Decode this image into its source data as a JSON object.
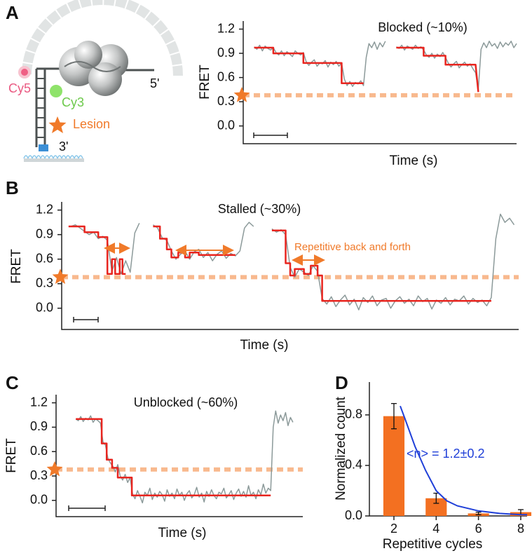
{
  "diagram": {
    "labels": {
      "cy5": "Cy5",
      "cy3": "Cy3",
      "lesion": "Lesion",
      "five_prime": "5'",
      "three_prime": "3'"
    }
  },
  "chart_data": [
    {
      "type": "line",
      "panel": "A",
      "title": "Blocked (~10%)",
      "xlabel": "Time (s)",
      "ylabel": "FRET",
      "xlim": [
        0,
        100
      ],
      "ylim": [
        -0.22,
        1.3
      ],
      "yticks": [
        {
          "value": 0,
          "label": "0.0"
        },
        0.3,
        0.6,
        0.9,
        1.2
      ],
      "lesion_level": 0.38,
      "lesion_color": "#f8b98e",
      "star_color": "#f07a2a",
      "series": [
        {
          "color": "#8c9a9a",
          "x": [
            4,
            5,
            6,
            7,
            8,
            9,
            10,
            11,
            12,
            13,
            14,
            15,
            16,
            17,
            18,
            19,
            20,
            21,
            22,
            23,
            24,
            25,
            26,
            27,
            28,
            29,
            30,
            31,
            32,
            33,
            34,
            35,
            36,
            37,
            38,
            39,
            40,
            41,
            42,
            43,
            44,
            45,
            46,
            47,
            48,
            49,
            50,
            51,
            52
          ],
          "values": [
            0.98,
            0.95,
            1.0,
            0.93,
            0.99,
            0.96,
            0.94,
            0.97,
            0.91,
            0.88,
            0.93,
            0.87,
            0.92,
            0.89,
            0.86,
            0.93,
            0.9,
            0.88,
            0.91,
            0.8,
            0.75,
            0.79,
            0.82,
            0.74,
            0.78,
            0.77,
            0.81,
            0.73,
            0.79,
            0.76,
            0.8,
            0.74,
            0.78,
            0.58,
            0.5,
            0.55,
            0.49,
            0.54,
            0.52,
            0.56,
            0.5,
            0.85,
            1.02,
            0.97,
            1.04,
            0.95,
            1.03,
            0.98,
            1.05
          ]
        },
        {
          "color": "#8c9a9a",
          "x": [
            56,
            57,
            58,
            59,
            60,
            61,
            62,
            63,
            64,
            65,
            66,
            67,
            68,
            69,
            70,
            71,
            72,
            73,
            74,
            75,
            76,
            77,
            78,
            79,
            80,
            81,
            82,
            83,
            84,
            85,
            86,
            87,
            88,
            89,
            90,
            91,
            92,
            93,
            94,
            95,
            96,
            97,
            98,
            99,
            100
          ],
          "values": [
            0.98,
            0.96,
            1.0,
            0.94,
            0.99,
            0.97,
            0.95,
            1.0,
            0.96,
            0.98,
            0.94,
            0.88,
            0.85,
            0.9,
            0.84,
            0.89,
            0.86,
            0.91,
            0.85,
            0.78,
            0.73,
            0.77,
            0.8,
            0.72,
            0.76,
            0.79,
            0.74,
            0.77,
            0.71,
            0.66,
            0.45,
            0.95,
            1.03,
            0.97,
            1.05,
            0.99,
            1.02,
            0.96,
            1.04,
            0.98,
            1.03,
            1.0,
            1.05,
            0.97,
            1.02
          ]
        },
        {
          "color": "#e8251f",
          "x": [
            4,
            11,
            11,
            22,
            22,
            36,
            36,
            44
          ],
          "values": [
            0.97,
            0.97,
            0.9,
            0.9,
            0.78,
            0.78,
            0.53,
            0.53
          ]
        },
        {
          "color": "#e8251f",
          "x": [
            56,
            66,
            66,
            74,
            74,
            85,
            85,
            86
          ],
          "values": [
            0.97,
            0.97,
            0.87,
            0.87,
            0.76,
            0.76,
            0.76,
            0.42
          ]
        }
      ]
    },
    {
      "type": "line",
      "panel": "B",
      "title": "Stalled (~30%)",
      "xlabel": "Time (s)",
      "ylabel": "FRET",
      "annotation": "Repetitive back and forth",
      "xlim": [
        0,
        100
      ],
      "ylim": [
        -0.26,
        1.3
      ],
      "yticks": [
        {
          "value": 0,
          "label": "0.0"
        },
        0.3,
        0.6,
        0.9,
        1.2
      ],
      "lesion_level": 0.38,
      "lesion_color": "#f8b98e",
      "star_color": "#f07a2a",
      "series": [
        {
          "color": "#8c9a9a",
          "x": [
            2,
            3,
            4,
            5,
            6,
            7,
            8,
            9,
            10,
            11,
            12,
            13,
            14,
            15,
            16,
            17
          ],
          "values": [
            1.0,
            1.02,
            0.98,
            0.94,
            0.9,
            0.93,
            0.85,
            0.88,
            0.83,
            0.45,
            0.62,
            0.42,
            0.58,
            0.44,
            0.92,
            1.04
          ]
        },
        {
          "color": "#8c9a9a",
          "x": [
            20,
            21,
            22,
            23,
            24,
            25,
            26,
            27,
            28,
            29,
            30,
            31,
            32,
            33,
            34,
            35,
            36,
            37,
            38,
            39,
            40,
            41,
            42
          ],
          "values": [
            1.02,
            0.98,
            0.86,
            0.83,
            0.7,
            0.6,
            0.66,
            0.7,
            0.6,
            0.69,
            0.72,
            0.62,
            0.68,
            0.58,
            0.66,
            0.7,
            0.61,
            0.67,
            0.64,
            0.7,
            0.98,
            1.05,
            1.0
          ]
        },
        {
          "color": "#8c9a9a",
          "x": [
            46,
            47,
            48,
            49,
            50,
            51,
            52,
            53,
            54,
            55,
            56,
            57,
            58,
            59,
            60,
            61,
            62,
            63,
            64,
            65,
            66,
            67,
            68,
            69,
            70,
            71,
            72,
            73,
            74,
            75,
            76,
            77,
            78,
            79,
            80,
            81,
            82,
            83,
            84,
            85,
            86,
            87,
            88,
            89,
            90,
            91,
            92,
            93,
            94,
            95,
            96,
            97,
            98,
            99
          ],
          "values": [
            0.97,
            0.93,
            0.96,
            0.9,
            0.5,
            0.38,
            0.48,
            0.44,
            0.4,
            0.52,
            0.45,
            0.12,
            0.05,
            0.14,
            0.02,
            0.1,
            0.16,
            0.04,
            0.11,
            -0.02,
            0.13,
            0.07,
            0.15,
            0.03,
            0.1,
            0.12,
            0.0,
            0.09,
            0.14,
            0.06,
            0.11,
            0.03,
            0.15,
            0.08,
            0.12,
            -0.01,
            0.1,
            0.06,
            0.13,
            0.04,
            0.11,
            0.09,
            0.15,
            0.05,
            0.12,
            0.07,
            0.1,
            0.03,
            0.13,
            0.85,
            1.15,
            1.05,
            1.1,
            1.02
          ]
        },
        {
          "color": "#e8251f",
          "x": [
            1.5,
            5,
            5,
            8,
            8,
            10,
            10,
            11,
            11,
            11.7,
            11.7,
            12.7,
            12.7,
            13.3,
            13.3,
            14
          ],
          "values": [
            1.0,
            1.0,
            0.93,
            0.93,
            0.87,
            0.87,
            0.42,
            0.42,
            0.6,
            0.6,
            0.42,
            0.42,
            0.6,
            0.6,
            0.42,
            0.42
          ]
        },
        {
          "color": "#e8251f",
          "x": [
            20,
            21.5,
            21.5,
            23,
            23,
            24,
            24,
            25.5,
            25.5,
            27,
            27,
            28,
            28,
            30,
            30,
            38
          ],
          "values": [
            1.0,
            1.0,
            0.85,
            0.85,
            0.72,
            0.72,
            0.62,
            0.62,
            0.68,
            0.68,
            0.62,
            0.62,
            0.68,
            0.68,
            0.65,
            0.65
          ]
        },
        {
          "color": "#e8251f",
          "x": [
            46,
            49,
            49,
            50,
            50,
            51,
            51,
            53,
            53,
            54.5,
            54.5,
            56,
            56,
            57,
            57,
            94
          ],
          "values": [
            0.95,
            0.95,
            0.55,
            0.55,
            0.4,
            0.4,
            0.48,
            0.48,
            0.42,
            0.42,
            0.52,
            0.52,
            0.4,
            0.4,
            0.09,
            0.09
          ]
        }
      ]
    },
    {
      "type": "line",
      "panel": "C",
      "title": "Unblocked (~60%)",
      "xlabel": "Time (s)",
      "ylabel": "FRET",
      "xlim": [
        0,
        100
      ],
      "ylim": [
        -0.2,
        1.3
      ],
      "yticks": [
        {
          "value": 0,
          "label": "0.0"
        },
        0.3,
        0.6,
        0.9,
        1.2
      ],
      "lesion_level": 0.38,
      "lesion_color": "#f8b98e",
      "star_color": "#f07a2a",
      "series": [
        {
          "color": "#8c9a9a",
          "x": [
            8,
            9,
            10,
            11,
            12,
            13,
            14,
            15,
            16,
            17,
            18,
            19,
            20,
            21,
            22,
            23,
            24,
            25,
            26,
            27,
            28,
            29,
            30,
            31,
            32,
            33,
            34,
            35,
            36,
            37,
            38,
            39,
            40,
            41,
            42,
            43,
            44,
            45,
            46,
            47,
            48,
            49,
            50,
            51,
            52,
            53,
            54,
            55,
            56,
            57,
            58,
            59,
            60,
            61,
            62,
            63,
            64,
            65,
            66,
            67,
            68,
            69,
            70,
            71,
            72,
            73,
            74,
            75,
            76,
            77,
            78,
            79,
            80,
            81,
            82,
            83,
            84,
            85,
            86,
            87,
            88,
            89,
            90,
            91,
            92,
            93,
            94,
            95,
            96
          ],
          "values": [
            1.0,
            0.98,
            1.03,
            0.97,
            1.01,
            0.99,
            1.04,
            0.96,
            1.0,
            0.98,
            0.95,
            0.72,
            0.68,
            0.52,
            0.46,
            0.42,
            0.35,
            0.44,
            0.3,
            0.25,
            0.32,
            0.22,
            0.28,
            0.08,
            0.02,
            0.12,
            0.05,
            -0.03,
            0.1,
            0.06,
            0.15,
            0.01,
            0.09,
            0.04,
            0.11,
            0.07,
            -0.01,
            0.13,
            0.05,
            0.09,
            0.02,
            0.14,
            0.06,
            0.1,
            0.0,
            0.08,
            0.12,
            0.03,
            0.07,
            0.16,
            0.04,
            0.09,
            -0.02,
            0.11,
            0.05,
            0.13,
            0.06,
            0.02,
            0.1,
            0.08,
            0.15,
            0.03,
            0.07,
            0.12,
            0.01,
            0.09,
            0.14,
            0.05,
            0.11,
            0.04,
            0.18,
            0.06,
            0.1,
            0.02,
            0.13,
            0.07,
            0.2,
            0.09,
            0.15,
            0.12,
            0.9,
            1.1,
            0.95,
            1.05,
            0.98,
            1.08,
            0.92,
            1.02,
            0.96
          ]
        },
        {
          "color": "#e8251f",
          "x": [
            8,
            18.5,
            18.5,
            20.5,
            20.5,
            22.7,
            22.7,
            25,
            25,
            30.7,
            30.7,
            87
          ],
          "values": [
            1.0,
            1.0,
            0.7,
            0.7,
            0.5,
            0.5,
            0.4,
            0.4,
            0.28,
            0.28,
            0.06,
            0.06
          ]
        }
      ]
    },
    {
      "type": "bar",
      "panel": "D",
      "xlabel": "Repetitive cycles",
      "ylabel": "Normalized count",
      "annotation": "<n> = 1.2±0.2",
      "x": [
        2,
        4,
        6,
        8
      ],
      "values": [
        0.79,
        0.14,
        0.02,
        0.03
      ],
      "errors": [
        0.1,
        0.04,
        0.01,
        0.02
      ],
      "color": "#f37021",
      "xlim": [
        0.84,
        8.3
      ],
      "xticks": [
        2,
        4,
        6,
        8
      ],
      "ylim": [
        0,
        1.06
      ],
      "yticks": [
        {
          "value": 0,
          "label": "0.0"
        },
        0.4,
        0.8
      ],
      "fit": {
        "color": "#1f3fd8",
        "x": [
          2.3,
          2.5,
          3,
          3.5,
          4,
          4.5,
          5,
          6,
          7,
          8,
          8.3
        ],
        "values": [
          0.87,
          0.78,
          0.55,
          0.36,
          0.2,
          0.12,
          0.08,
          0.04,
          0.02,
          0.01,
          0.01
        ]
      }
    }
  ]
}
